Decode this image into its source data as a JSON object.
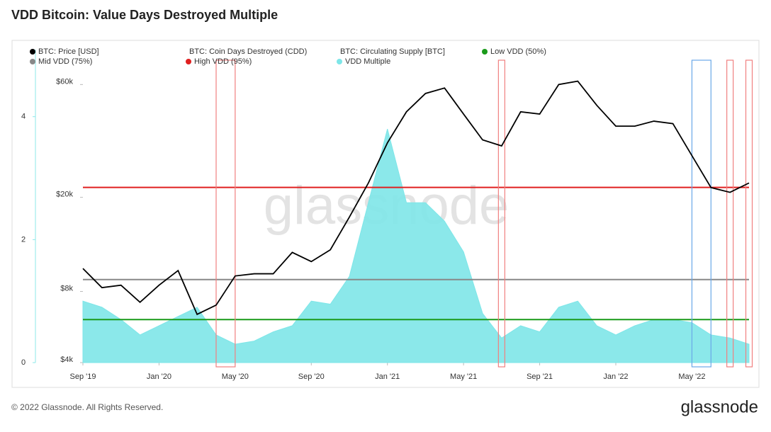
{
  "chart_data": {
    "type": "line",
    "title": "VDD Bitcoin: Value Days Destroyed Multiple",
    "watermark": "glassnode",
    "x": [
      "2019-09",
      "2019-10",
      "2019-11",
      "2019-12",
      "2020-01",
      "2020-02",
      "2020-03",
      "2020-04",
      "2020-05",
      "2020-06",
      "2020-07",
      "2020-08",
      "2020-09",
      "2020-10",
      "2020-11",
      "2020-12",
      "2021-01",
      "2021-02",
      "2021-03",
      "2021-04",
      "2021-05",
      "2021-06",
      "2021-07",
      "2021-08",
      "2021-09",
      "2021-10",
      "2021-11",
      "2021-12",
      "2022-01",
      "2022-02",
      "2022-03",
      "2022-04",
      "2022-05",
      "2022-06",
      "2022-07",
      "2022-08"
    ],
    "xticks": [
      {
        "value": "2019-09",
        "label": "Sep '19"
      },
      {
        "value": "2020-01",
        "label": "Jan '20"
      },
      {
        "value": "2020-05",
        "label": "May '20"
      },
      {
        "value": "2020-09",
        "label": "Sep '20"
      },
      {
        "value": "2021-01",
        "label": "Jan '21"
      },
      {
        "value": "2021-05",
        "label": "May '21"
      },
      {
        "value": "2021-09",
        "label": "Sep '21"
      },
      {
        "value": "2022-01",
        "label": "Jan '22"
      },
      {
        "value": "2022-05",
        "label": "May '22"
      }
    ],
    "ylim": [
      0,
      4.78
    ],
    "yticks": [
      0,
      2,
      4
    ],
    "y2lim": [
      4000,
      70000
    ],
    "y2scale": "log",
    "y2ticks": [
      {
        "value": 4000,
        "label": "$4k"
      },
      {
        "value": 8000,
        "label": "$8k"
      },
      {
        "value": 20000,
        "label": "$20k"
      },
      {
        "value": 60000,
        "label": "$60k"
      }
    ],
    "series": [
      {
        "name": "BTC: Price [USD]",
        "color": "#000000",
        "axis": "y2",
        "kind": "line",
        "values": [
          10000,
          8300,
          8500,
          7200,
          8500,
          9800,
          6400,
          7000,
          9300,
          9500,
          9500,
          11700,
          10700,
          12000,
          16500,
          23000,
          34000,
          46000,
          55000,
          58000,
          45000,
          35000,
          33000,
          46000,
          45000,
          60000,
          62000,
          49000,
          40000,
          40000,
          42000,
          41000,
          30000,
          22000,
          21000,
          23000
        ]
      },
      {
        "name": "VDD Multiple",
        "color": "#7ee6e8",
        "axis": "y",
        "kind": "area",
        "values": [
          1.0,
          0.9,
          0.7,
          0.45,
          0.6,
          0.75,
          0.9,
          0.45,
          0.3,
          0.35,
          0.5,
          0.6,
          1.0,
          0.95,
          1.4,
          2.6,
          3.8,
          2.6,
          2.6,
          2.3,
          1.8,
          0.8,
          0.4,
          0.6,
          0.5,
          0.9,
          1.0,
          0.6,
          0.45,
          0.6,
          0.7,
          0.7,
          0.65,
          0.45,
          0.4,
          0.3
        ]
      }
    ],
    "hidden_series": [
      {
        "name": "BTC: Coin Days Destroyed (CDD)",
        "color": "#cccccc"
      },
      {
        "name": "BTC: Circulating Supply [BTC]",
        "color": "#cccccc"
      }
    ],
    "reference_lines": [
      {
        "name": "Low VDD (50%)",
        "value": 0.7,
        "color": "#1a9a1a"
      },
      {
        "name": "Mid VDD (75%)",
        "value": 1.35,
        "color": "#888888"
      },
      {
        "name": "High VDD (95%)",
        "value": 2.85,
        "color": "#e02020"
      }
    ],
    "highlights": [
      {
        "start": "2020-04",
        "end": "2020-05",
        "color": "#f08080"
      },
      {
        "start": "2021-07",
        "end": "2021-07",
        "color": "#f08080"
      },
      {
        "start": "2022-05",
        "end": "2022-06",
        "color": "#6aa8e8"
      },
      {
        "start": "2022-07",
        "end": "2022-07",
        "color": "#f08080"
      },
      {
        "start": "2022-08",
        "end": "2022-08",
        "color": "#f08080"
      }
    ]
  },
  "footer": {
    "copyright": "© 2022 Glassnode. All Rights Reserved.",
    "logo": "glassnode"
  }
}
